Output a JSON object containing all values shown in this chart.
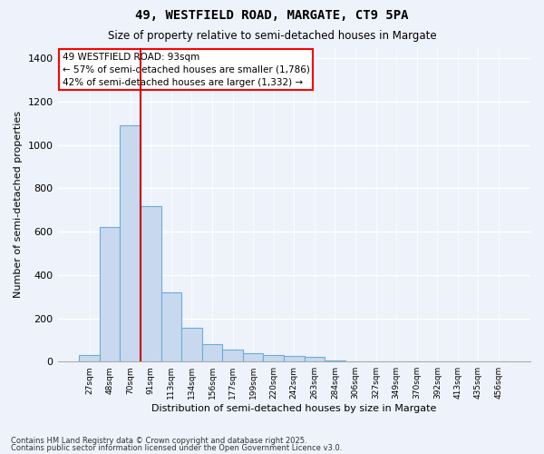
{
  "title1": "49, WESTFIELD ROAD, MARGATE, CT9 5PA",
  "title2": "Size of property relative to semi-detached houses in Margate",
  "xlabel": "Distribution of semi-detached houses by size in Margate",
  "ylabel": "Number of semi-detached properties",
  "annotation_title": "49 WESTFIELD ROAD: 93sqm",
  "annotation_line1": "← 57% of semi-detached houses are smaller (1,786)",
  "annotation_line2": "42% of semi-detached houses are larger (1,332) →",
  "property_bin_index": 2,
  "categories": [
    "27sqm",
    "48sqm",
    "70sqm",
    "91sqm",
    "113sqm",
    "134sqm",
    "156sqm",
    "177sqm",
    "199sqm",
    "220sqm",
    "242sqm",
    "263sqm",
    "284sqm",
    "306sqm",
    "327sqm",
    "349sqm",
    "370sqm",
    "392sqm",
    "413sqm",
    "435sqm",
    "456sqm"
  ],
  "values": [
    30,
    620,
    1090,
    720,
    320,
    155,
    80,
    55,
    40,
    30,
    28,
    20,
    5,
    0,
    0,
    0,
    0,
    0,
    0,
    0,
    0
  ],
  "bar_color": "#c8d9ef",
  "bar_edge_color": "#6aaed6",
  "marker_color": "#cc0000",
  "background_color": "#eef2fb",
  "grid_color": "#ffffff",
  "footer1": "Contains HM Land Registry data © Crown copyright and database right 2025.",
  "footer2": "Contains public sector information licensed under the Open Government Licence v3.0.",
  "ylim": [
    0,
    1450
  ],
  "yticks": [
    0,
    200,
    400,
    600,
    800,
    1000,
    1200,
    1400
  ]
}
